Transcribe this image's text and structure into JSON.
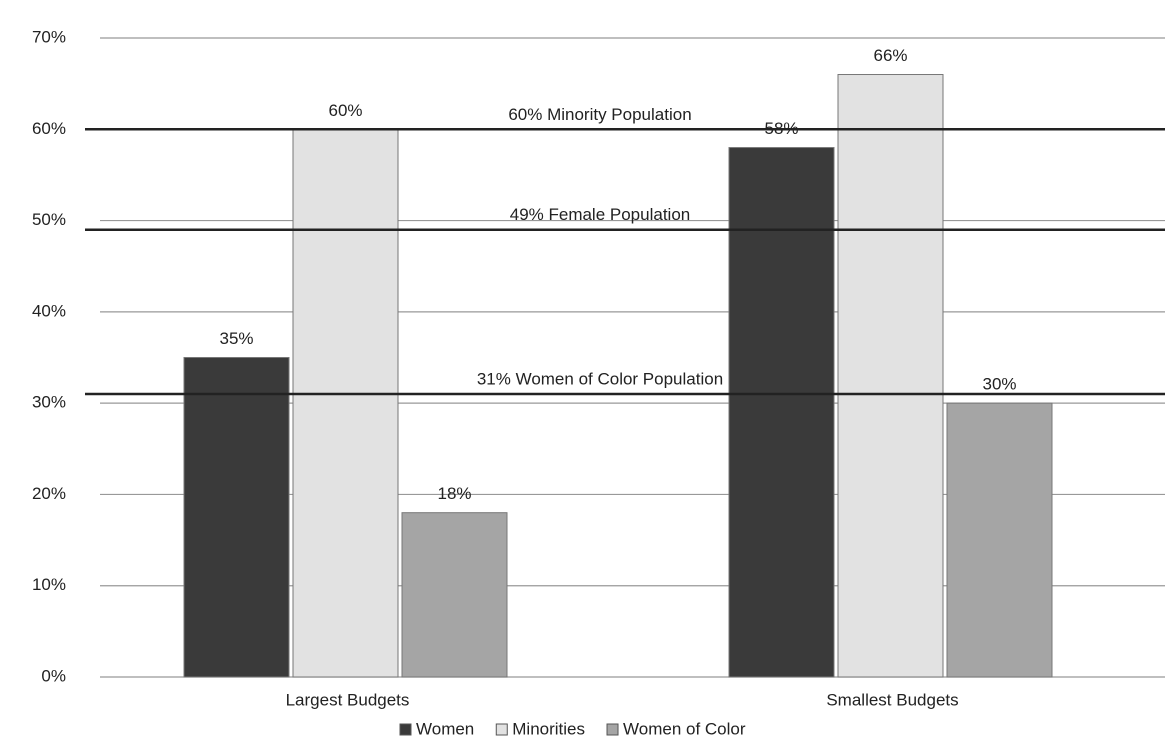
{
  "chart_data": {
    "type": "bar",
    "categories": [
      "Largest Budgets",
      "Smallest Budgets"
    ],
    "series": [
      {
        "name": "Women",
        "color": "#3a3a3a",
        "values": [
          35,
          58
        ],
        "value_labels": [
          "35%",
          "58%"
        ]
      },
      {
        "name": "Minorities",
        "color": "#e2e2e2",
        "values": [
          60,
          66
        ],
        "value_labels": [
          "60%",
          "66%"
        ]
      },
      {
        "name": "Women of Color",
        "color": "#a5a5a5",
        "values": [
          18,
          30
        ],
        "value_labels": [
          "18%",
          "30%"
        ]
      }
    ],
    "reference_lines": [
      {
        "value": 60,
        "label": "60% Minority Population"
      },
      {
        "value": 49,
        "label": "49% Female Population"
      },
      {
        "value": 31,
        "label": "31% Women of Color Population"
      }
    ],
    "ylim": [
      0,
      70
    ],
    "yticks": [
      {
        "value": 0,
        "label": "0%"
      },
      {
        "value": 10,
        "label": "10%"
      },
      {
        "value": 20,
        "label": "20%"
      },
      {
        "value": 30,
        "label": "30%"
      },
      {
        "value": 40,
        "label": "40%"
      },
      {
        "value": 50,
        "label": "50%"
      },
      {
        "value": 60,
        "label": "60%"
      },
      {
        "value": 70,
        "label": "70%"
      }
    ],
    "grid": true,
    "legend": "bottom"
  }
}
